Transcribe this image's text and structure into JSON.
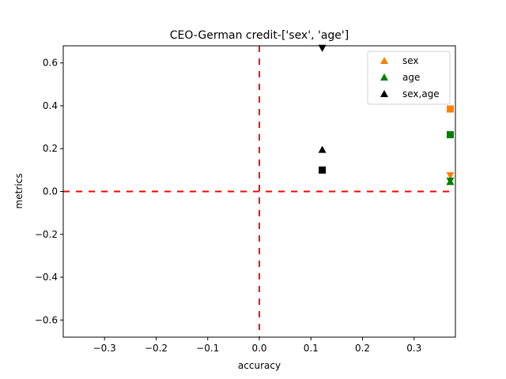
{
  "chart_data": {
    "type": "scatter",
    "title": "CEO-German credit-['sex', 'age']",
    "xlabel": "accuracy",
    "ylabel": "metrics",
    "xlim": [
      -0.38,
      0.38
    ],
    "ylim": [
      -0.68,
      0.68
    ],
    "xticks": [
      -0.3,
      -0.2,
      -0.1,
      0.0,
      0.1,
      0.2,
      0.3
    ],
    "xtick_labels": [
      "−0.3",
      "−0.2",
      "−0.1",
      "0.0",
      "0.1",
      "0.2",
      "0.3"
    ],
    "yticks": [
      -0.6,
      -0.4,
      -0.2,
      0.0,
      0.2,
      0.4,
      0.6
    ],
    "ytick_labels": [
      "−0.6",
      "−0.4",
      "−0.2",
      "0.0",
      "0.2",
      "0.4",
      "0.6"
    ],
    "grid": false,
    "legend_position": "top-right",
    "reference_lines": {
      "x": 0.0,
      "y": 0.0,
      "color": "#ff0000",
      "style": "dashed"
    },
    "series": [
      {
        "name": "sex",
        "color": "#ff8000",
        "points": [
          {
            "x": 0.37,
            "y": 0.385,
            "marker": "square"
          },
          {
            "x": 0.37,
            "y": 0.075,
            "marker": "triangle-down"
          },
          {
            "x": 0.37,
            "y": 0.045,
            "marker": "triangle-up"
          }
        ]
      },
      {
        "name": "age",
        "color": "#008000",
        "points": [
          {
            "x": 0.37,
            "y": 0.265,
            "marker": "square"
          },
          {
            "x": 0.37,
            "y": 0.05,
            "marker": "triangle-down"
          },
          {
            "x": 0.37,
            "y": 0.045,
            "marker": "triangle-up"
          }
        ]
      },
      {
        "name": "sex,age",
        "color": "#000000",
        "points": [
          {
            "x": 0.122,
            "y": 0.67,
            "marker": "triangle-down"
          },
          {
            "x": 0.122,
            "y": 0.195,
            "marker": "triangle-up"
          },
          {
            "x": 0.122,
            "y": 0.1,
            "marker": "square"
          }
        ]
      }
    ]
  }
}
